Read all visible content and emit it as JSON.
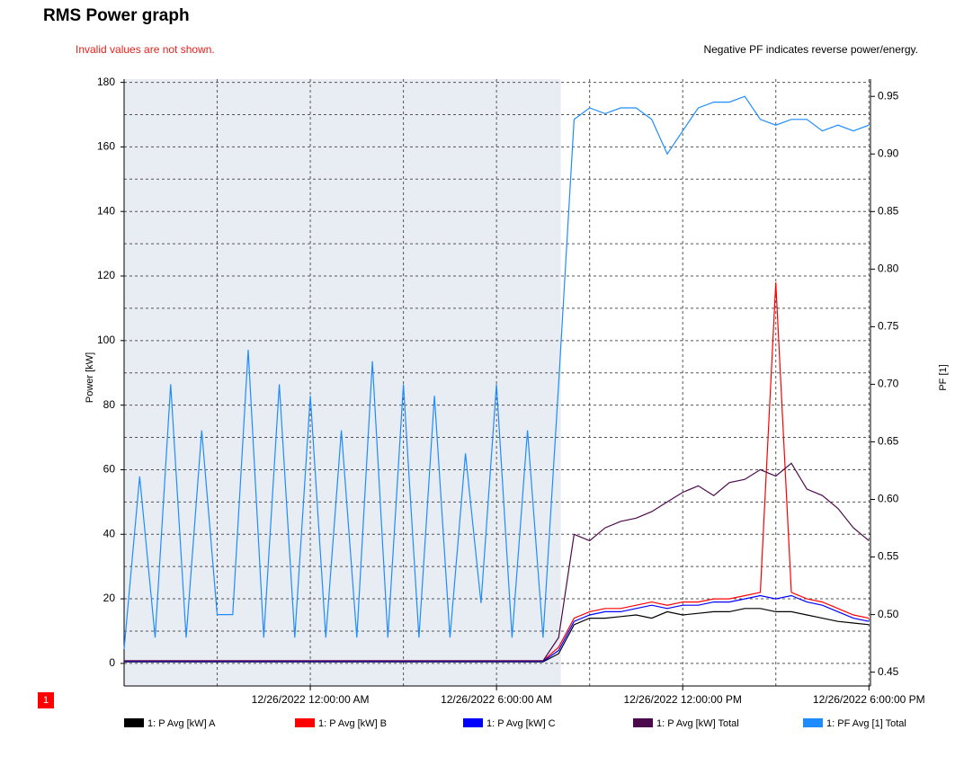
{
  "chart_data": {
    "type": "line",
    "title": "RMS Power graph",
    "note_left": "Invalid values are not shown.",
    "note_right": "Negative PF indicates reverse power/energy.",
    "y_label": "Power [kW]",
    "y2_label": "PF [1]",
    "marker_label": "1",
    "highlight": [
      -6,
      8.07
    ],
    "grid": true,
    "x": [
      -6,
      -5.5,
      -5,
      -4.5,
      -4,
      -3.5,
      -3,
      -2.5,
      -2,
      -1.5,
      -1,
      -0.5,
      0,
      0.5,
      1,
      1.5,
      2,
      2.5,
      3,
      3.5,
      4,
      4.5,
      5,
      5.5,
      6,
      6.5,
      7,
      7.5,
      8,
      8.5,
      9,
      9.5,
      10,
      10.5,
      11,
      11.5,
      12,
      12.5,
      13,
      13.5,
      14,
      14.5,
      15,
      15.5,
      16,
      16.5,
      17,
      17.5,
      18
    ],
    "xlim": [
      -6,
      18.05
    ],
    "xticks": [
      {
        "value": 0,
        "label": "12/26/2022 12:00:00 AM"
      },
      {
        "value": 6,
        "label": "12/26/2022 6:00:00 AM"
      },
      {
        "value": 12,
        "label": "12/26/2022 12:00:00 PM"
      },
      {
        "value": 18,
        "label": "12/26/2022 6:00:00 PM"
      }
    ],
    "ylim": [
      -7,
      181
    ],
    "yticks": [
      0,
      20,
      40,
      60,
      80,
      100,
      120,
      140,
      160,
      180
    ],
    "y2lim": [
      0.438,
      0.965
    ],
    "y2ticks": [
      0.45,
      {
        "value": 0.5,
        "label": "0.50"
      },
      0.55,
      {
        "value": 0.6,
        "label": "0.60"
      },
      0.65,
      {
        "value": 0.7,
        "label": "0.70"
      },
      0.75,
      {
        "value": 0.8,
        "label": "0.80"
      },
      0.85,
      {
        "value": 0.9,
        "label": "0.90"
      },
      0.95
    ],
    "series": [
      {
        "name": "1: P Avg [kW] A",
        "color": "#000000",
        "values": [
          0.5,
          0.5,
          0.5,
          0.5,
          0.5,
          0.5,
          0.5,
          0.5,
          0.5,
          0.5,
          0.5,
          0.5,
          0.5,
          0.5,
          0.5,
          0.5,
          0.5,
          0.5,
          0.5,
          0.5,
          0.5,
          0.5,
          0.5,
          0.5,
          0.5,
          0.5,
          0.5,
          0.5,
          3,
          12,
          14,
          14,
          14.5,
          15,
          14,
          16,
          15,
          15.5,
          16,
          16,
          17,
          17,
          16,
          16,
          15,
          14,
          13,
          12.5,
          12
        ]
      },
      {
        "name": "1: P Avg [kW] B",
        "color": "#ff0000",
        "values": [
          0.8,
          0.8,
          0.8,
          0.8,
          0.8,
          0.8,
          0.8,
          0.8,
          0.8,
          0.8,
          0.8,
          0.8,
          0.8,
          0.8,
          0.8,
          0.8,
          0.8,
          0.8,
          0.8,
          0.8,
          0.8,
          0.8,
          0.8,
          0.8,
          0.8,
          0.8,
          0.8,
          0.8,
          5,
          14,
          16,
          17,
          17,
          18,
          19,
          18,
          19,
          19,
          20,
          20,
          21,
          22,
          118,
          22,
          20,
          19,
          17,
          15,
          14
        ]
      },
      {
        "name": "1: P Avg [kW] C",
        "color": "#0000ff",
        "values": [
          0.6,
          0.6,
          0.6,
          0.6,
          0.6,
          0.6,
          0.6,
          0.6,
          0.6,
          0.6,
          0.6,
          0.6,
          0.6,
          0.6,
          0.6,
          0.6,
          0.6,
          0.6,
          0.6,
          0.6,
          0.6,
          0.6,
          0.6,
          0.6,
          0.6,
          0.6,
          0.6,
          0.6,
          4,
          13,
          15,
          16,
          16,
          17,
          18,
          17,
          18,
          18,
          19,
          19,
          20,
          21,
          20,
          21,
          19,
          18,
          16,
          14,
          13
        ]
      },
      {
        "name": "1: P Avg [kW] Total",
        "color": "#4b0a4b",
        "values": [
          0.8,
          0.8,
          0.8,
          0.8,
          0.8,
          0.8,
          0.8,
          0.8,
          0.8,
          0.8,
          0.8,
          0.8,
          0.8,
          0.8,
          0.8,
          0.8,
          0.8,
          0.8,
          0.8,
          0.8,
          0.8,
          0.8,
          0.8,
          0.8,
          0.8,
          0.8,
          0.8,
          0.8,
          8,
          40,
          38,
          42,
          44,
          45,
          47,
          50,
          53,
          55,
          52,
          56,
          57,
          60,
          58,
          62,
          54,
          52,
          48,
          42,
          38
        ]
      },
      {
        "name": "1: PF Avg [1] Total",
        "color": "#1e8cff",
        "axis": "y2",
        "values": [
          0.47,
          0.62,
          0.48,
          0.7,
          0.48,
          0.66,
          0.5,
          0.5,
          0.73,
          0.48,
          0.7,
          0.48,
          0.69,
          0.48,
          0.66,
          0.48,
          0.72,
          0.48,
          0.7,
          0.48,
          0.69,
          0.48,
          0.64,
          0.51,
          0.7,
          0.48,
          0.66,
          0.48,
          0.7,
          0.93,
          0.94,
          0.935,
          0.94,
          0.94,
          0.93,
          0.9,
          0.92,
          0.94,
          0.945,
          0.945,
          0.95,
          0.93,
          0.925,
          0.93,
          0.93,
          0.92,
          0.925,
          0.92,
          0.925
        ]
      }
    ]
  }
}
